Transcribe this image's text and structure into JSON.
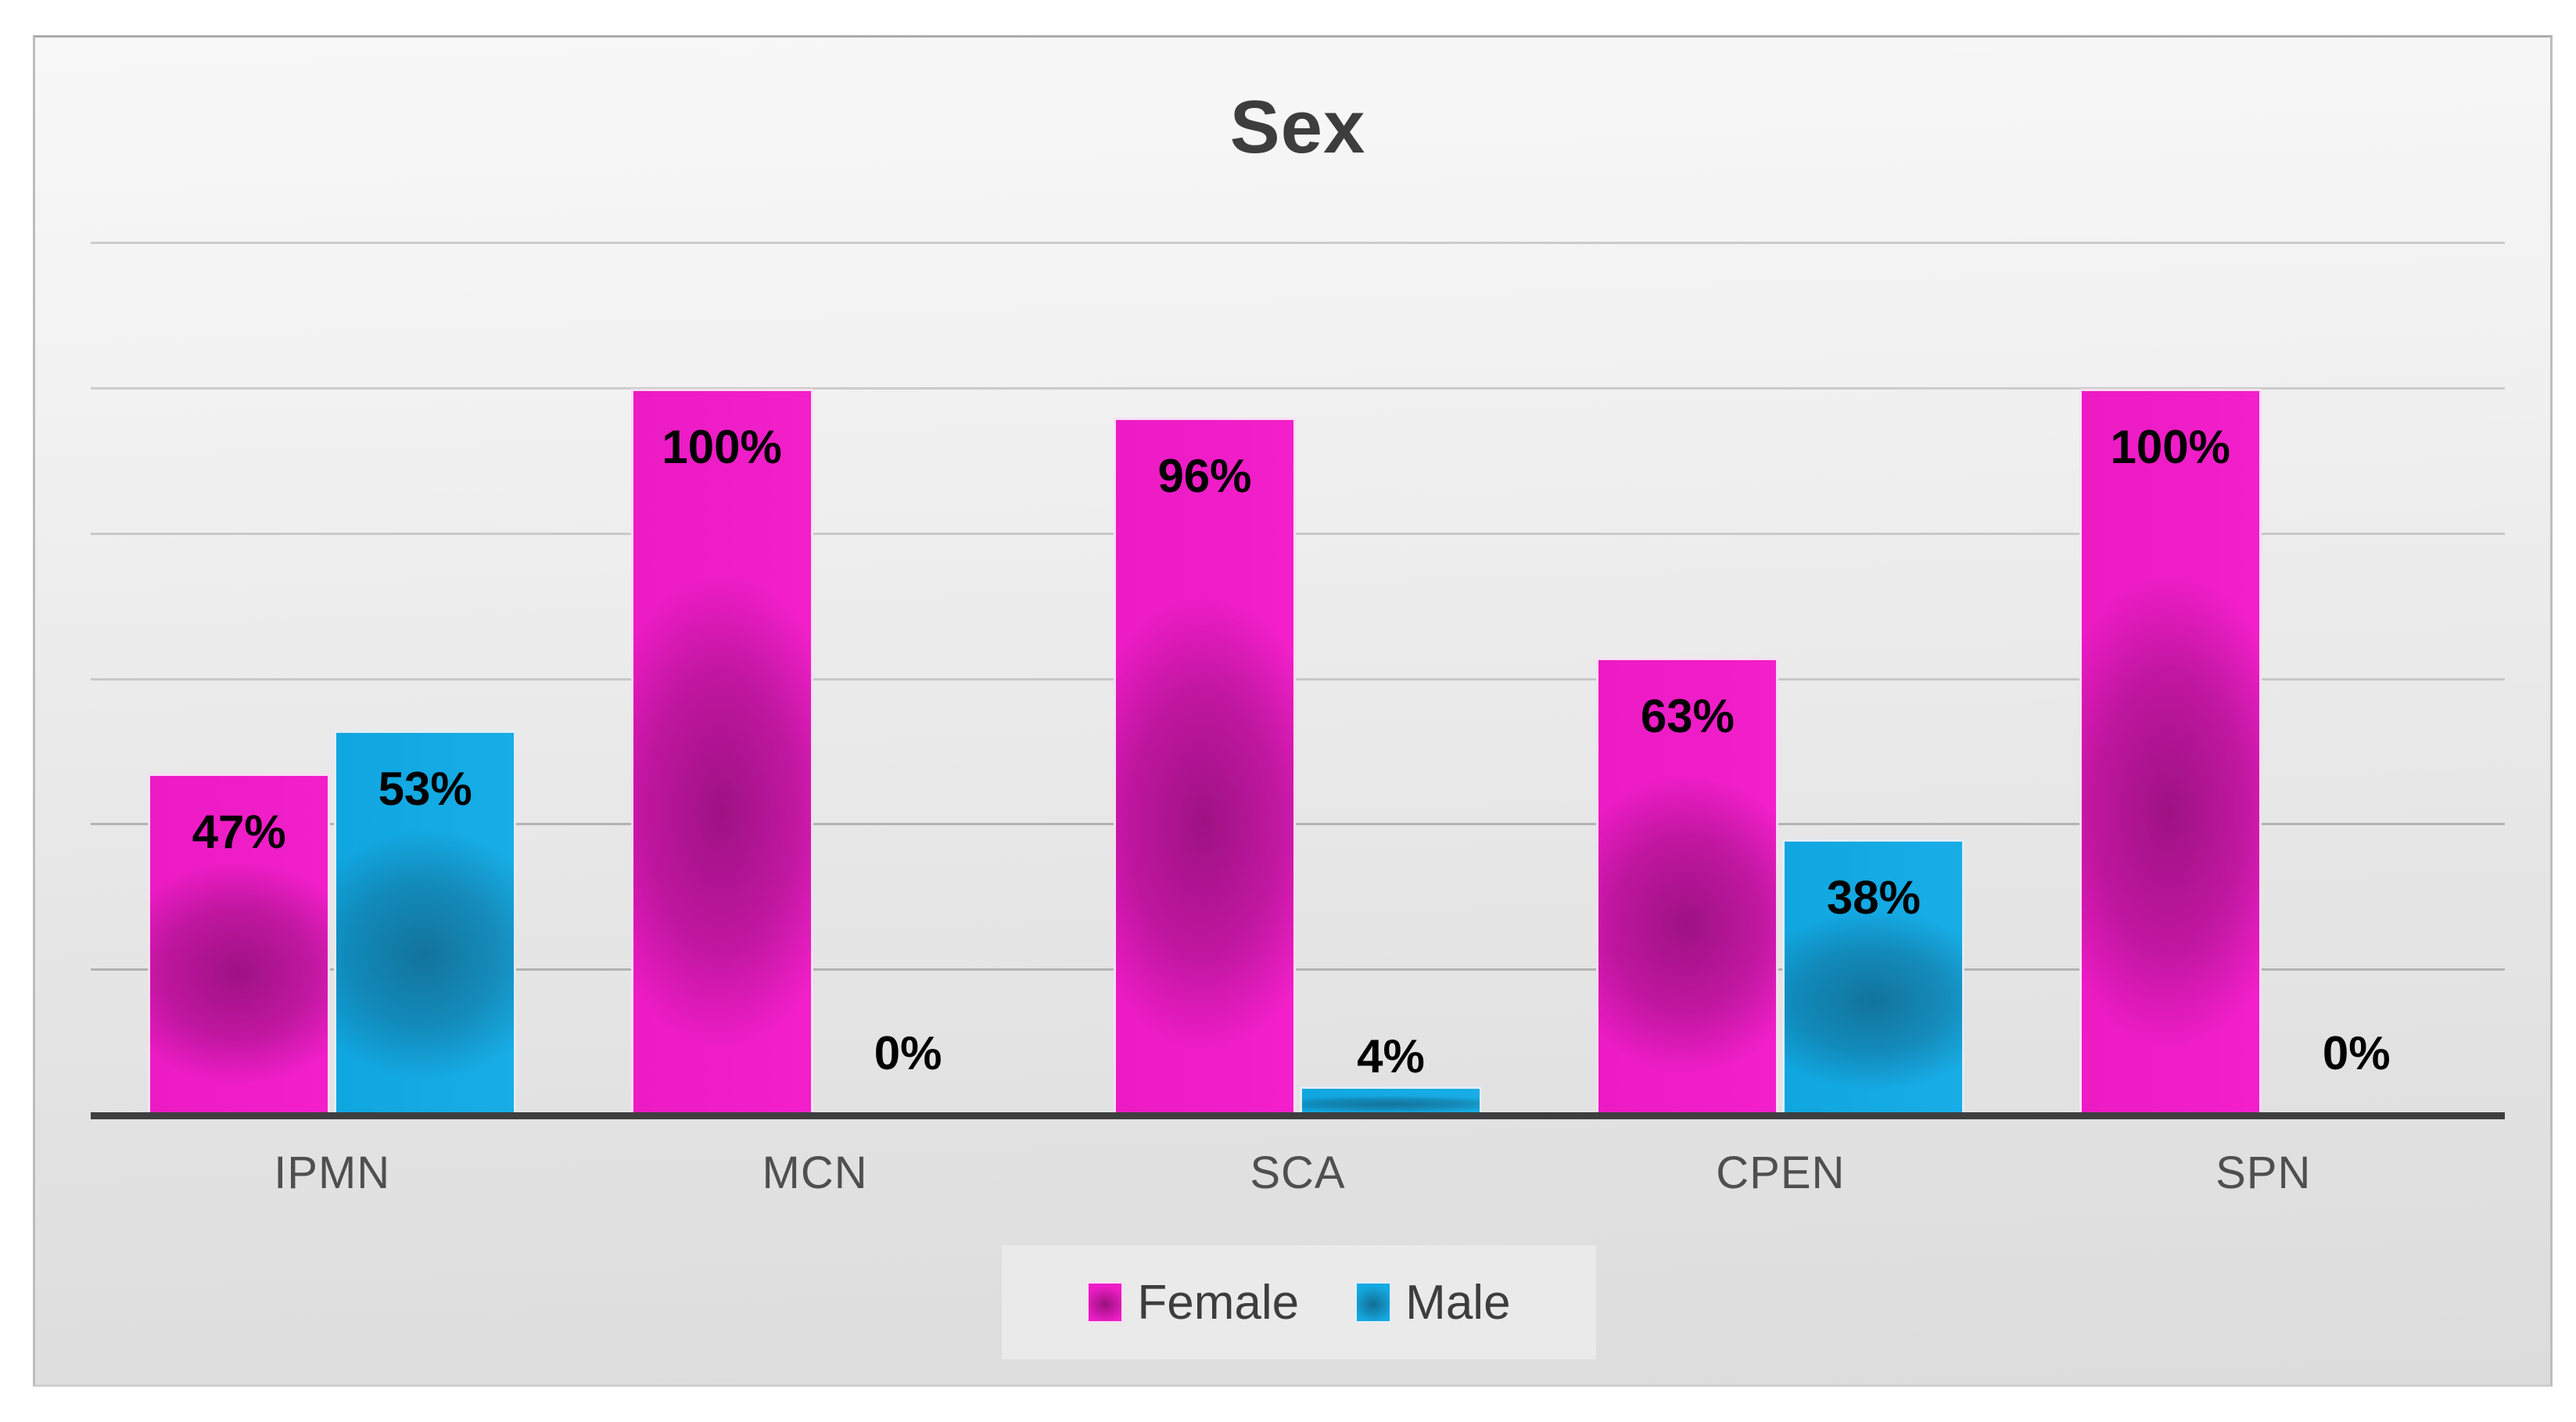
{
  "chart_data": {
    "type": "bar",
    "title": "Sex",
    "categories": [
      "IPMN",
      "MCN",
      "SCA",
      "CPEN",
      "SPN"
    ],
    "series": [
      {
        "name": "Female",
        "color": "#ee1dc6",
        "values": [
          47,
          100,
          96,
          63,
          100
        ],
        "data_labels": [
          "47%",
          "100%",
          "96%",
          "63%",
          "100%"
        ]
      },
      {
        "name": "Male",
        "color": "#14a9e2",
        "values": [
          53,
          0,
          4,
          38,
          0
        ],
        "data_labels": [
          "53%",
          "0%",
          "4%",
          "38%",
          "0%"
        ]
      }
    ],
    "ylim": [
      0,
      120
    ],
    "gridline_step": 20,
    "grid": "horizontal-only",
    "y_axis_labels_visible": false,
    "legend_position": "bottom-center",
    "value_format": "percent"
  },
  "legend": {
    "items": [
      {
        "label": "Female",
        "color": "#ee1dc6"
      },
      {
        "label": "Male",
        "color": "#14a9e2"
      }
    ]
  },
  "style": {
    "accent_female": "#ee1dc6",
    "accent_male": "#14a9e2",
    "axis_line_color": "#3e3e3e",
    "gridline_color": "#9d9d9d",
    "title_color": "#3d3d3d",
    "category_label_color": "#4f4f4f"
  }
}
